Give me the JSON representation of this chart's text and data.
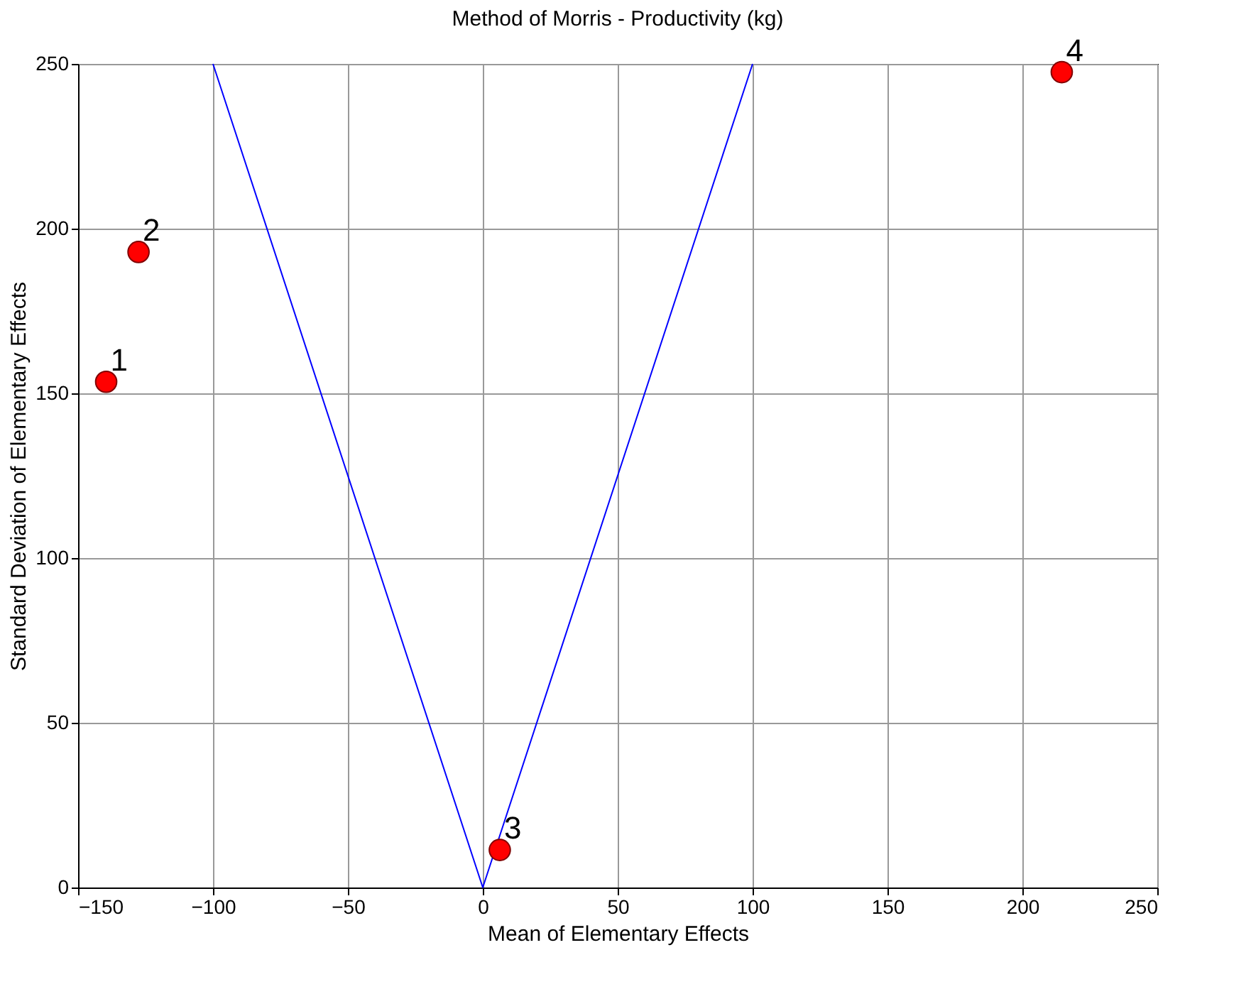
{
  "chart_data": {
    "type": "scatter",
    "title": "Method of Morris - Productivity (kg)",
    "xlabel": "Mean of Elementary Effects",
    "ylabel": "Standard Deviation of Elementary Effects",
    "xlim": [
      -150,
      250
    ],
    "xticks": [
      -150,
      -100,
      -50,
      0,
      50,
      100,
      150,
      200,
      250
    ],
    "ylim": [
      0,
      250
    ],
    "yticks": [
      0,
      50,
      100,
      150,
      200,
      250
    ],
    "grid": true,
    "series": [
      {
        "type": "line",
        "color": "#0000ff",
        "x": [
          -100,
          0,
          100
        ],
        "values": [
          250,
          0,
          250
        ],
        "marker": "none",
        "line_style": "solid"
      },
      {
        "color": "#ff0000",
        "x": [
          -139.6,
          -127.6,
          6.3,
          214.6
        ],
        "values": [
          153.5,
          192.9,
          11.4,
          247.5
        ],
        "marker": "circle"
      }
    ],
    "annotations": [
      {
        "text": "1",
        "x": -139.6,
        "y": 153.5
      },
      {
        "text": "2",
        "x": -127.6,
        "y": 192.9
      },
      {
        "text": "3",
        "x": 6.3,
        "y": 11.4
      },
      {
        "text": "4",
        "x": 214.6,
        "y": 247.5
      }
    ]
  }
}
